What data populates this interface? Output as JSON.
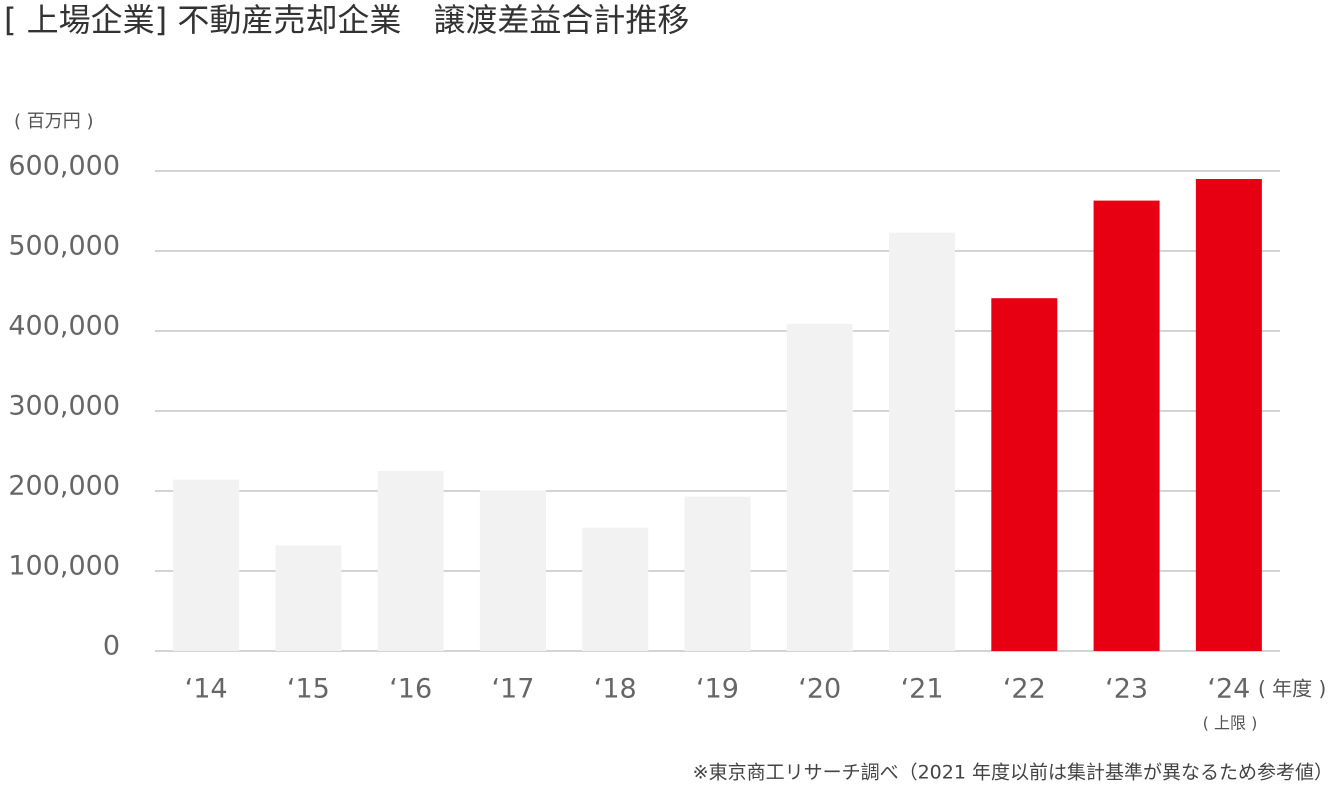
{
  "chart_data": {
    "type": "bar",
    "title": "[ 上場企業] 不動産売却企業　譲渡差益合計推移",
    "y_label": "( 百万円 )",
    "x_label": "( 年度 )",
    "annotation": "( 上限 )",
    "footnote": "※東京商工リサーチ調べ（2021 年度以前は集計基準が異なるため参考値）",
    "categories": [
      "‘14",
      "‘15",
      "‘16",
      "‘17",
      "‘18",
      "‘19",
      "‘20",
      "‘21",
      "‘22",
      "‘23",
      "‘24"
    ],
    "values": [
      214000,
      132000,
      225000,
      201000,
      154000,
      193000,
      409000,
      523000,
      441000,
      563000,
      590000
    ],
    "colors": [
      "#f2f2f2",
      "#f2f2f2",
      "#f2f2f2",
      "#f2f2f2",
      "#f2f2f2",
      "#f2f2f2",
      "#f2f2f2",
      "#f2f2f2",
      "#e60012",
      "#e60012",
      "#e60012"
    ],
    "ylim": [
      0,
      600000
    ],
    "yticks": [
      0,
      {
        "value": 100000,
        "label": "100,000"
      },
      {
        "value": 200000,
        "label": "200,000"
      },
      {
        "value": 300000,
        "label": "300,000"
      },
      {
        "value": 400000,
        "label": "400,000"
      },
      {
        "value": 500000,
        "label": "500,000"
      },
      {
        "value": 600000,
        "label": "600,000"
      }
    ],
    "grid": true
  }
}
